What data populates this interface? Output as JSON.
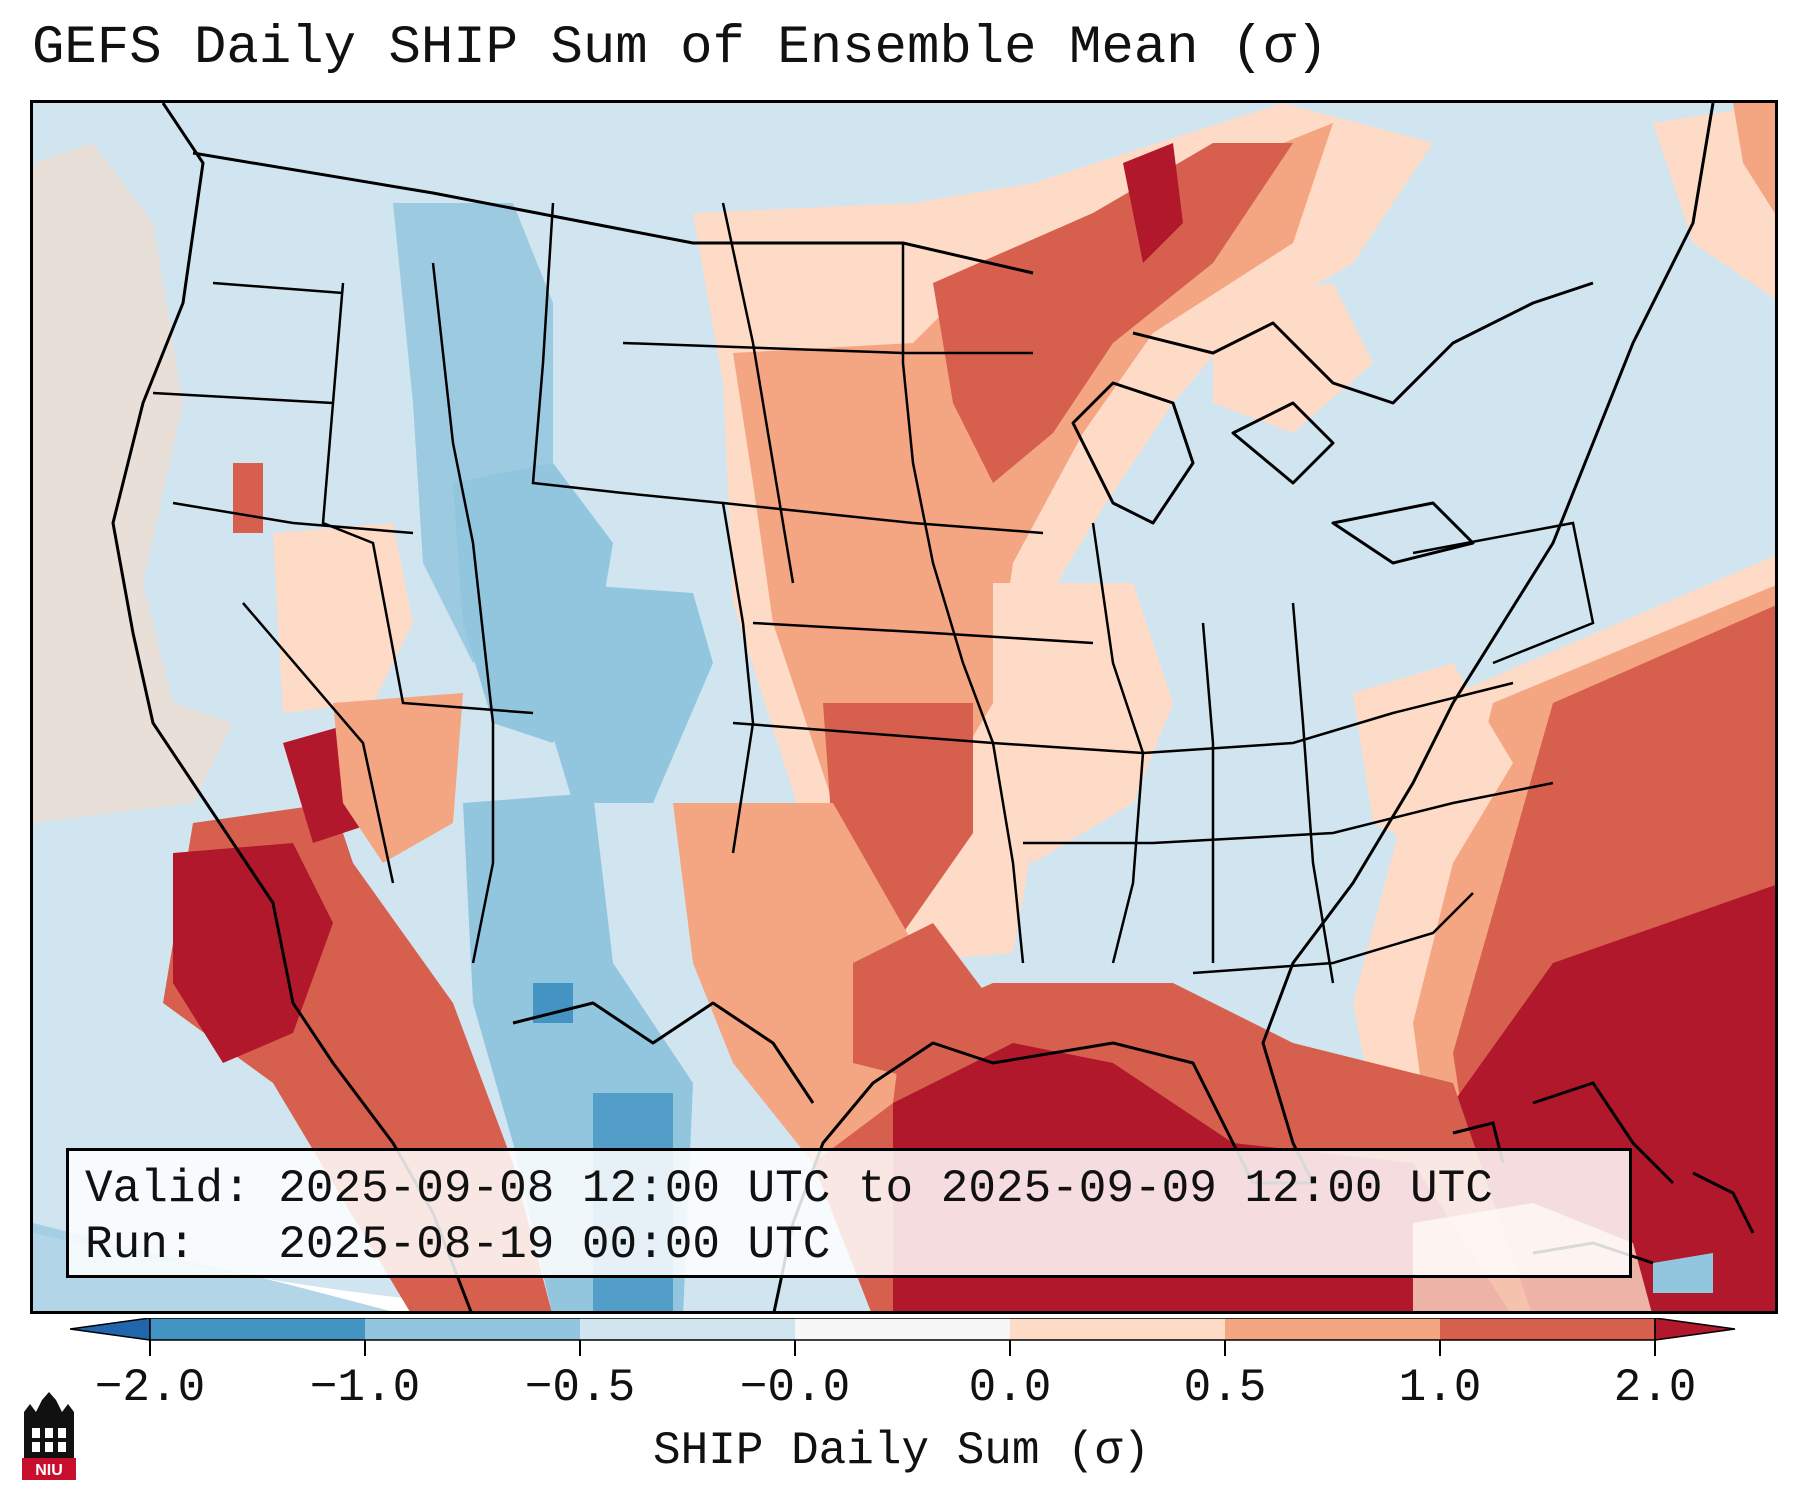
{
  "title": "GEFS Daily SHIP Sum of Ensemble Mean (σ)",
  "info": {
    "valid_label": "Valid:",
    "valid_value": "2025-09-08 12:00 UTC to 2025-09-09 12:00 UTC",
    "run_label": "Run:",
    "run_value": "2025-08-19 00:00 UTC"
  },
  "colorbar": {
    "label": "SHIP Daily Sum (σ)",
    "ticks": [
      "−2.0",
      "−1.0",
      "−0.5",
      "−0.0",
      "0.0",
      "0.5",
      "1.0",
      "2.0"
    ],
    "bins": [
      {
        "range": "< -2.0",
        "color": "#2166ac"
      },
      {
        "range": "-2.0 to -1.0",
        "color": "#4393c3"
      },
      {
        "range": "-1.0 to -0.5",
        "color": "#92c5de"
      },
      {
        "range": "-0.5 to -0.0",
        "color": "#d1e5f0"
      },
      {
        "range": "-0.0 to 0.0",
        "color": "#f7f7f7"
      },
      {
        "range": "0.0 to 0.5",
        "color": "#fddbc7"
      },
      {
        "range": "0.5 to 1.0",
        "color": "#f4a582"
      },
      {
        "range": "1.0 to 2.0",
        "color": "#d6604d"
      },
      {
        "range": "> 2.0",
        "color": "#b2182b"
      }
    ]
  },
  "map": {
    "region": "Contiguous United States",
    "colors": {
      "neg_strong": "#4393c3",
      "neg_mid": "#92c5de",
      "neg_weak": "#d1e5f0",
      "pos_weak": "#fddbc7",
      "pos_mid": "#f4a582",
      "pos_strong": "#d6604d",
      "pos_max": "#b2182b"
    }
  },
  "logo": {
    "text": "NIU",
    "color": "#c8102e"
  }
}
